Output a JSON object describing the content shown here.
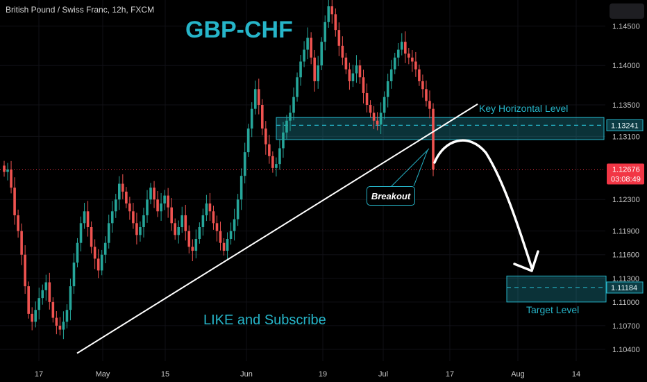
{
  "header": {
    "instrument": "British Pound / Swiss Franc, 12h, FXCM"
  },
  "annotations": {
    "title": "GBP-CHF",
    "like_subscribe": "LIKE and Subscribe",
    "key_level": "Key Horizontal Level",
    "target_level": "Target Level",
    "breakout": "Breakout"
  },
  "colors": {
    "background": "#000000",
    "bull": "#26a69a",
    "bear": "#ef5350",
    "accent": "#26b5c9",
    "price_tag": "#f23645"
  },
  "price_axis": {
    "ticks": [
      "1.14500",
      "1.14000",
      "1.13500",
      "1.13100",
      "1.12300",
      "1.11900",
      "1.11600",
      "1.11300",
      "1.11000",
      "1.10700",
      "1.10400"
    ],
    "current_price": "1.12676",
    "countdown": "03:08:49",
    "key_level_value": "1.13241",
    "target_value": "1.11184"
  },
  "time_axis": {
    "ticks": [
      "17",
      "May",
      "15",
      "Jun",
      "19",
      "Jul",
      "17",
      "Aug",
      "14"
    ]
  },
  "chart_data": {
    "type": "candlestick",
    "symbol": "GBP/CHF",
    "timeframe": "12h",
    "ylim": [
      1.1025,
      1.1483
    ],
    "current_price": 1.12676,
    "zones": [
      {
        "label": "Key Horizontal Level",
        "center": 1.13241,
        "high": 1.1334,
        "low": 1.1306
      },
      {
        "label": "Target Level",
        "center": 1.11184,
        "high": 1.1133,
        "low": 1.11
      }
    ],
    "trendline": {
      "from": {
        "x": "Apr 24",
        "y": 1.1035
      },
      "to": {
        "x": "Jul 18",
        "y": 1.1351
      }
    },
    "candles_approx_closes": [
      1.1265,
      1.1268,
      1.1245,
      1.121,
      1.119,
      1.116,
      1.112,
      1.1085,
      1.1075,
      1.109,
      1.1105,
      1.1115,
      1.1125,
      1.11,
      1.108,
      1.107,
      1.1065,
      1.1075,
      1.109,
      1.112,
      1.115,
      1.1175,
      1.12,
      1.1215,
      1.1195,
      1.117,
      1.1155,
      1.114,
      1.116,
      1.1175,
      1.12,
      1.1215,
      1.123,
      1.125,
      1.124,
      1.1225,
      1.1215,
      1.12,
      1.1185,
      1.1195,
      1.121,
      1.123,
      1.1245,
      1.123,
      1.1215,
      1.1225,
      1.1235,
      1.122,
      1.12,
      1.1185,
      1.1195,
      1.121,
      1.119,
      1.117,
      1.1165,
      1.118,
      1.1195,
      1.121,
      1.1225,
      1.1215,
      1.12,
      1.119,
      1.1175,
      1.1165,
      1.118,
      1.119,
      1.1205,
      1.123,
      1.126,
      1.129,
      1.132,
      1.1345,
      1.137,
      1.135,
      1.132,
      1.13,
      1.1285,
      1.127,
      1.1275,
      1.1295,
      1.1315,
      1.133,
      1.134,
      1.136,
      1.1385,
      1.1405,
      1.142,
      1.1435,
      1.141,
      1.138,
      1.14,
      1.143,
      1.1455,
      1.1475,
      1.1465,
      1.1445,
      1.1425,
      1.141,
      1.1395,
      1.138,
      1.139,
      1.14,
      1.1385,
      1.1365,
      1.135,
      1.134,
      1.133,
      1.1325,
      1.134,
      1.136,
      1.138,
      1.1395,
      1.141,
      1.142,
      1.143,
      1.1415,
      1.141,
      1.1405,
      1.1395,
      1.138,
      1.137,
      1.1355,
      1.1345,
      1.1268
    ]
  }
}
